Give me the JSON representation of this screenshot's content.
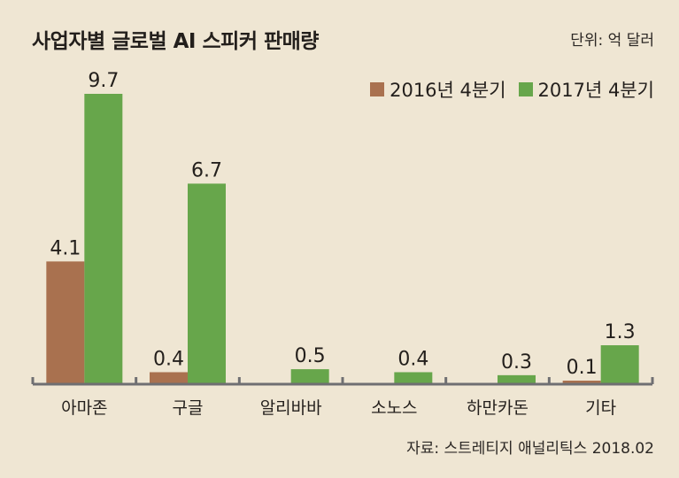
{
  "title": "사업자별 글로벌 AI 스피커 판매량",
  "unit": "단위: 억 달러",
  "source": "자료: 스트레티지 애널리틱스 2018.02",
  "colors": {
    "background": "#efe6d3",
    "series_2016": "#a9714f",
    "series_2017": "#67a64b",
    "axis": "#6f6f72"
  },
  "chart_data": {
    "type": "bar",
    "categories": [
      "아마존",
      "구글",
      "알리바바",
      "소노스",
      "하만카돈",
      "기타"
    ],
    "series": [
      {
        "name": "2016년 4분기",
        "values": [
          4.1,
          0.4,
          0,
          0,
          0,
          0.1
        ],
        "labels": [
          "4.1",
          "0.4",
          "",
          "",
          "",
          "0.1"
        ]
      },
      {
        "name": "2017년 4분기",
        "values": [
          9.7,
          6.7,
          0.5,
          0.4,
          0.3,
          1.3
        ],
        "labels": [
          "9.7",
          "6.7",
          "0.5",
          "0.4",
          "0.3",
          "1.3"
        ]
      }
    ],
    "ylim": [
      0,
      10
    ],
    "legend": "top-right",
    "grid": false
  }
}
